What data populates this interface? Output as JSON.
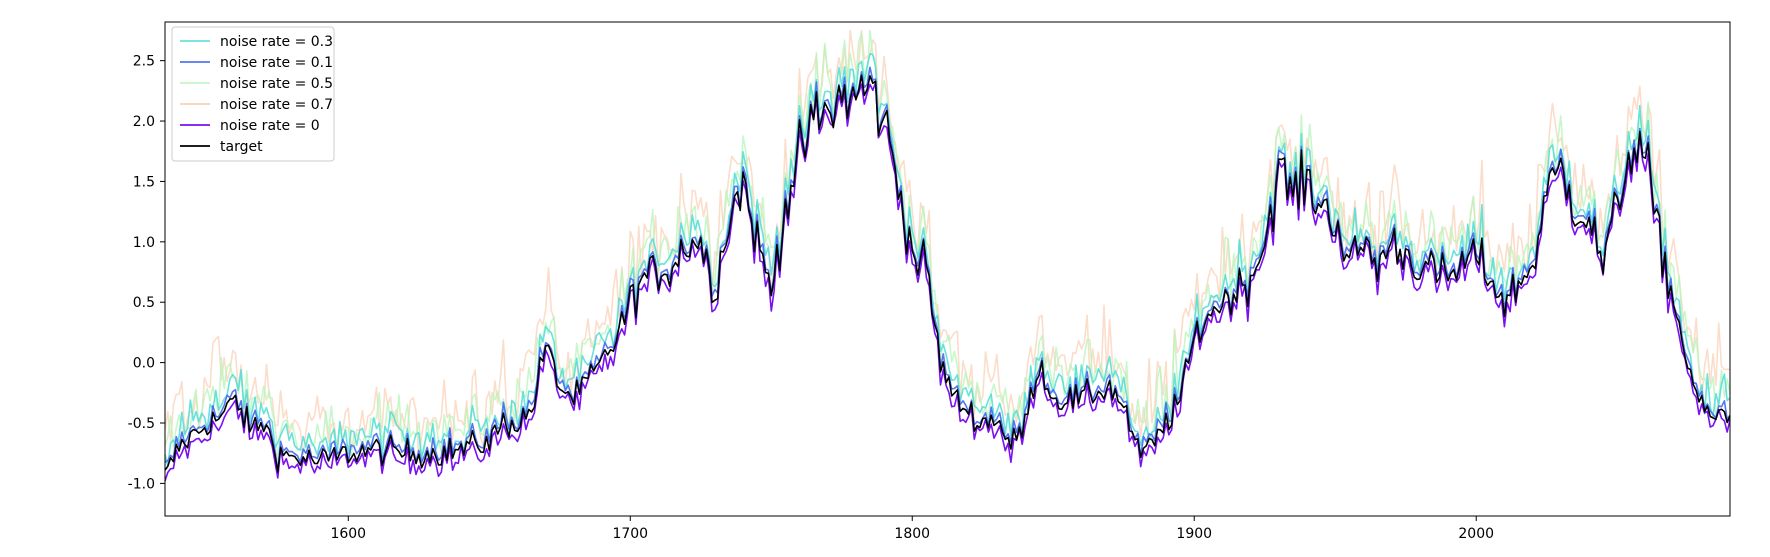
{
  "chart_data": {
    "type": "line",
    "title": "",
    "xlabel": "",
    "ylabel": "",
    "xlim": [
      1535,
      2090
    ],
    "ylim": [
      -1.27,
      2.82
    ],
    "xticks": [
      1600,
      1700,
      1800,
      1900,
      2000
    ],
    "yticks": [
      -1.0,
      -0.5,
      0.0,
      0.5,
      1.0,
      1.5,
      2.0,
      2.5
    ],
    "grid": false,
    "legend_position": "top-left",
    "series": [
      {
        "name": "noise rate = 0.3",
        "color": "#4fdcd6",
        "opacity": 0.85,
        "noise": 0.3
      },
      {
        "name": "noise rate = 0.1",
        "color": "#4a6ff0",
        "opacity": 0.95,
        "noise": 0.1
      },
      {
        "name": "noise rate = 0.5",
        "color": "#b6f5b8",
        "opacity": 0.75,
        "noise": 0.5
      },
      {
        "name": "noise rate = 0.7",
        "color": "#f9c7a6",
        "opacity": 0.6,
        "noise": 0.7
      },
      {
        "name": "noise rate = 0",
        "color": "#7b10f0",
        "opacity": 1.0,
        "noise": 0.0
      },
      {
        "name": "target",
        "color": "#000000",
        "opacity": 1.0,
        "noise": 0.0
      }
    ],
    "draw_order": [
      3,
      2,
      0,
      1,
      4,
      5
    ],
    "target_anchors": {
      "x": [
        1535,
        1540,
        1545,
        1550,
        1555,
        1560,
        1565,
        1570,
        1575,
        1580,
        1585,
        1590,
        1600,
        1610,
        1620,
        1630,
        1640,
        1650,
        1655,
        1660,
        1665,
        1670,
        1675,
        1680,
        1690,
        1695,
        1700,
        1705,
        1710,
        1715,
        1720,
        1725,
        1730,
        1735,
        1740,
        1745,
        1750,
        1755,
        1760,
        1765,
        1770,
        1775,
        1780,
        1785,
        1790,
        1795,
        1800,
        1805,
        1810,
        1815,
        1820,
        1825,
        1830,
        1835,
        1840,
        1845,
        1850,
        1860,
        1870,
        1875,
        1880,
        1885,
        1890,
        1895,
        1900,
        1905,
        1910,
        1915,
        1920,
        1925,
        1930,
        1935,
        1940,
        1945,
        1950,
        1955,
        1960,
        1965,
        1970,
        1980,
        1990,
        2000,
        2010,
        2020,
        2025,
        2030,
        2035,
        2040,
        2045,
        2050,
        2055,
        2060,
        2065,
        2070,
        2075,
        2080,
        2085,
        2090
      ],
      "y": [
        -0.95,
        -0.7,
        -0.6,
        -0.5,
        -0.45,
        -0.3,
        -0.55,
        -0.5,
        -0.75,
        -0.78,
        -0.8,
        -0.82,
        -0.75,
        -0.72,
        -0.75,
        -0.75,
        -0.72,
        -0.65,
        -0.5,
        -0.5,
        -0.4,
        0.15,
        -0.2,
        -0.3,
        0.0,
        0.2,
        0.5,
        0.7,
        0.75,
        0.8,
        1.0,
        1.0,
        0.6,
        1.2,
        1.5,
        1.0,
        0.6,
        1.3,
        1.7,
        2.0,
        2.05,
        2.2,
        2.2,
        2.3,
        2.0,
        1.5,
        0.9,
        0.8,
        0.0,
        -0.3,
        -0.4,
        -0.5,
        -0.45,
        -0.7,
        -0.5,
        0.0,
        -0.3,
        -0.3,
        -0.2,
        -0.35,
        -0.75,
        -0.7,
        -0.5,
        -0.3,
        0.2,
        0.4,
        0.5,
        0.6,
        0.7,
        1.0,
        1.6,
        1.4,
        1.5,
        1.3,
        1.2,
        0.8,
        1.0,
        0.8,
        1.0,
        0.8,
        0.7,
        0.9,
        0.5,
        0.8,
        1.4,
        1.6,
        1.3,
        1.2,
        0.8,
        1.3,
        1.8,
        1.7,
        1.0,
        0.5,
        0.0,
        -0.4,
        -0.45,
        -0.45
      ]
    }
  }
}
